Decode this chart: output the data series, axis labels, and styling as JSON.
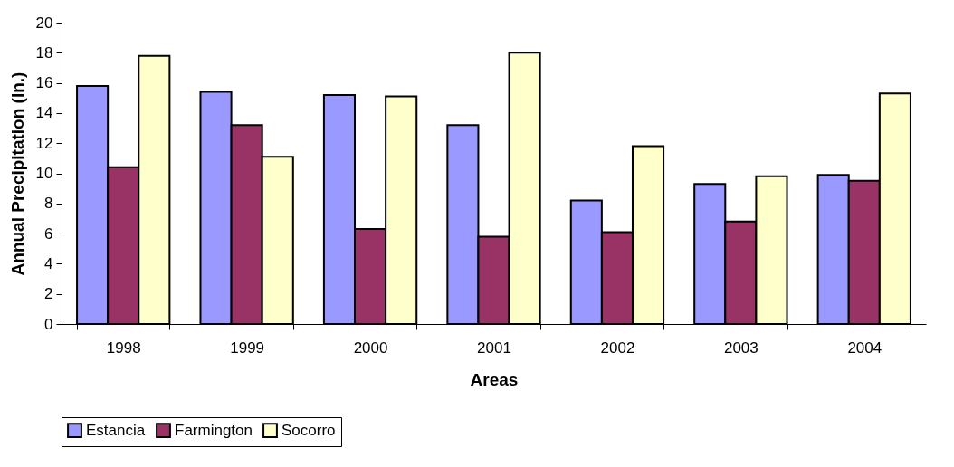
{
  "chart_data": {
    "type": "bar",
    "xlabel": "Areas",
    "ylabel": "Annual Precipitation (In.)",
    "categories": [
      "1998",
      "1999",
      "2000",
      "2001",
      "2002",
      "2003",
      "2004"
    ],
    "series": [
      {
        "name": "Estancia",
        "color": "#9999ff",
        "values": [
          15.8,
          15.4,
          15.2,
          13.2,
          8.2,
          9.3,
          9.9
        ]
      },
      {
        "name": "Farmington",
        "color": "#993366",
        "values": [
          10.4,
          13.2,
          6.3,
          5.8,
          6.1,
          6.8,
          9.5
        ]
      },
      {
        "name": "Socorro",
        "color": "#ffffcc",
        "values": [
          17.8,
          11.1,
          15.1,
          18.0,
          11.8,
          9.8,
          15.3
        ]
      }
    ],
    "ylim": [
      0,
      20
    ],
    "yticks": [
      0,
      2,
      4,
      6,
      8,
      10,
      12,
      14,
      16,
      18,
      20
    ],
    "grid": false,
    "legend": "bottom"
  }
}
